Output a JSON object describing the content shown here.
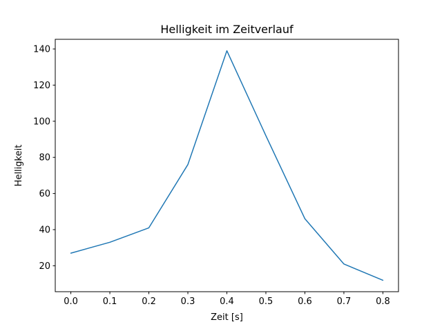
{
  "figure": {
    "background": "#ffffff",
    "frame_color": "#000000",
    "text_color": "#000000"
  },
  "chart_data": {
    "type": "line",
    "title": "Helligkeit im Zeitverlauf",
    "xlabel": "Zeit [s]",
    "ylabel": "Helligkeit",
    "x": [
      0.0,
      0.1,
      0.2,
      0.3,
      0.4,
      0.5,
      0.6,
      0.7,
      0.8
    ],
    "y": [
      27,
      33,
      41,
      76,
      139,
      92,
      46,
      21,
      12
    ],
    "series_name": "Helligkeit",
    "line_color": "#1f77b4",
    "x_tick_labels": [
      "0.0",
      "0.1",
      "0.2",
      "0.3",
      "0.4",
      "0.5",
      "0.6",
      "0.7",
      "0.8"
    ],
    "y_tick_labels": [
      "20",
      "40",
      "60",
      "80",
      "100",
      "120",
      "140"
    ],
    "xlim": [
      -0.04,
      0.84
    ],
    "ylim": [
      5.65,
      145.35
    ],
    "grid": false,
    "legend": null,
    "marker": "none"
  }
}
